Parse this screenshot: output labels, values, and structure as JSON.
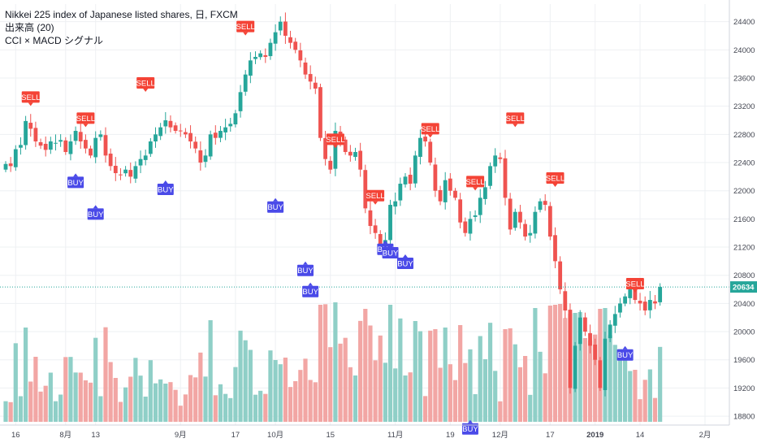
{
  "legend": {
    "line1": "Nikkei 225 index of Japanese listed shares, 日, FXCM",
    "line2": "出来高 (20)",
    "line3": "CCI × MACD シグナル"
  },
  "last_price": "20634",
  "colors": {
    "up": "#26a69a",
    "down": "#ef5350",
    "vol_up": "#8fcfc7",
    "vol_down": "#f2a6a4",
    "sell_signal": "#f44336",
    "buy_signal": "#4a4ae8",
    "price_line": "#26a69a",
    "grid": "#eef0f3",
    "axis_text": "#434651"
  },
  "chart_data": {
    "type": "candlestick",
    "title": "Nikkei 225 index of Japanese listed shares, 日, FXCM",
    "indicators": [
      "出来高 (20)",
      "CCI × MACD シグナル"
    ],
    "y_ticks": [
      18800,
      19200,
      19600,
      20000,
      20400,
      20800,
      21200,
      21600,
      22000,
      22400,
      22800,
      23200,
      23600,
      24000,
      24400
    ],
    "ylim": [
      18720,
      24650
    ],
    "x_ticks": [
      {
        "label": "16",
        "bar": 2
      },
      {
        "label": "8月",
        "bar": 12
      },
      {
        "label": "13",
        "bar": 18
      },
      {
        "label": "9月",
        "bar": 35
      },
      {
        "label": "17",
        "bar": 46
      },
      {
        "label": "10月",
        "bar": 54
      },
      {
        "label": "15",
        "bar": 65
      },
      {
        "label": "11月",
        "bar": 78
      },
      {
        "label": "19",
        "bar": 89
      },
      {
        "label": "12月",
        "bar": 99
      },
      {
        "label": "17",
        "bar": 109
      },
      {
        "label": "2019",
        "bar": 118
      },
      {
        "label": "14",
        "bar": 127
      },
      {
        "label": "2月",
        "bar": 140
      }
    ],
    "bar_count": 132,
    "grid": true,
    "last_price": 20634,
    "close": [
      22380,
      22350,
      22590,
      22650,
      22990,
      22880,
      22700,
      22640,
      22580,
      22700,
      22680,
      22720,
      22550,
      22700,
      22850,
      22700,
      22600,
      22500,
      22750,
      22800,
      22500,
      22350,
      22250,
      22230,
      22300,
      22200,
      22350,
      22450,
      22500,
      22700,
      22800,
      22900,
      23000,
      22900,
      22850,
      22850,
      22800,
      22700,
      22600,
      22400,
      22500,
      22800,
      22750,
      22850,
      22900,
      22950,
      23100,
      23400,
      23650,
      23850,
      23900,
      23950,
      23900,
      24100,
      24250,
      24400,
      24200,
      24100,
      24000,
      23850,
      23650,
      23550,
      23450,
      22750,
      22450,
      22300,
      22850,
      22700,
      22550,
      22500,
      22550,
      22300,
      21750,
      21500,
      21400,
      21200,
      21300,
      21800,
      21850,
      22100,
      22200,
      22100,
      22500,
      22750,
      22700,
      22400,
      22000,
      21850,
      22150,
      22000,
      21900,
      21550,
      21400,
      21600,
      21650,
      21900,
      22050,
      22350,
      22500,
      22450,
      21900,
      21450,
      21700,
      21550,
      21350,
      21400,
      21700,
      21850,
      21800,
      21350,
      21000,
      20600,
      20300,
      19200,
      19800,
      20200,
      20000,
      19800,
      19600,
      19200,
      19900,
      20100,
      20250,
      20400,
      20500,
      20600,
      20450,
      20400,
      20300,
      20450,
      20400,
      20634
    ],
    "sell_signals": [
      {
        "label": "SELL",
        "bar": 5,
        "value": 23250
      },
      {
        "label": "SELL",
        "bar": 16,
        "value": 22950
      },
      {
        "label": "SELL",
        "bar": 28,
        "value": 23450
      },
      {
        "label": "SELL",
        "bar": 48,
        "value": 24250
      },
      {
        "label": "SELL",
        "bar": 66,
        "value": 22650
      },
      {
        "label": "SELL",
        "bar": 74,
        "value": 21850
      },
      {
        "label": "SELL",
        "bar": 85,
        "value": 22800
      },
      {
        "label": "SELL",
        "bar": 94,
        "value": 22050
      },
      {
        "label": "SELL",
        "bar": 102,
        "value": 22950
      },
      {
        "label": "SELL",
        "bar": 110,
        "value": 22100
      },
      {
        "label": "SELL",
        "bar": 126,
        "value": 20600
      }
    ],
    "buy_signals": [
      {
        "label": "BUY",
        "bar": 14,
        "value": 22200
      },
      {
        "label": "BUY",
        "bar": 18,
        "value": 21750
      },
      {
        "label": "BUY",
        "bar": 32,
        "value": 22100
      },
      {
        "label": "BUY",
        "bar": 54,
        "value": 21850
      },
      {
        "label": "BUY",
        "bar": 60,
        "value": 20950
      },
      {
        "label": "BUY",
        "bar": 61,
        "value": 20650
      },
      {
        "label": "BUY",
        "bar": 76,
        "value": 21250
      },
      {
        "label": "BUY",
        "bar": 77,
        "value": 21200
      },
      {
        "label": "BUY",
        "bar": 80,
        "value": 21050
      },
      {
        "label": "BUY",
        "bar": 93,
        "value": 18700
      },
      {
        "label": "BUY",
        "bar": 124,
        "value": 19750
      }
    ]
  }
}
